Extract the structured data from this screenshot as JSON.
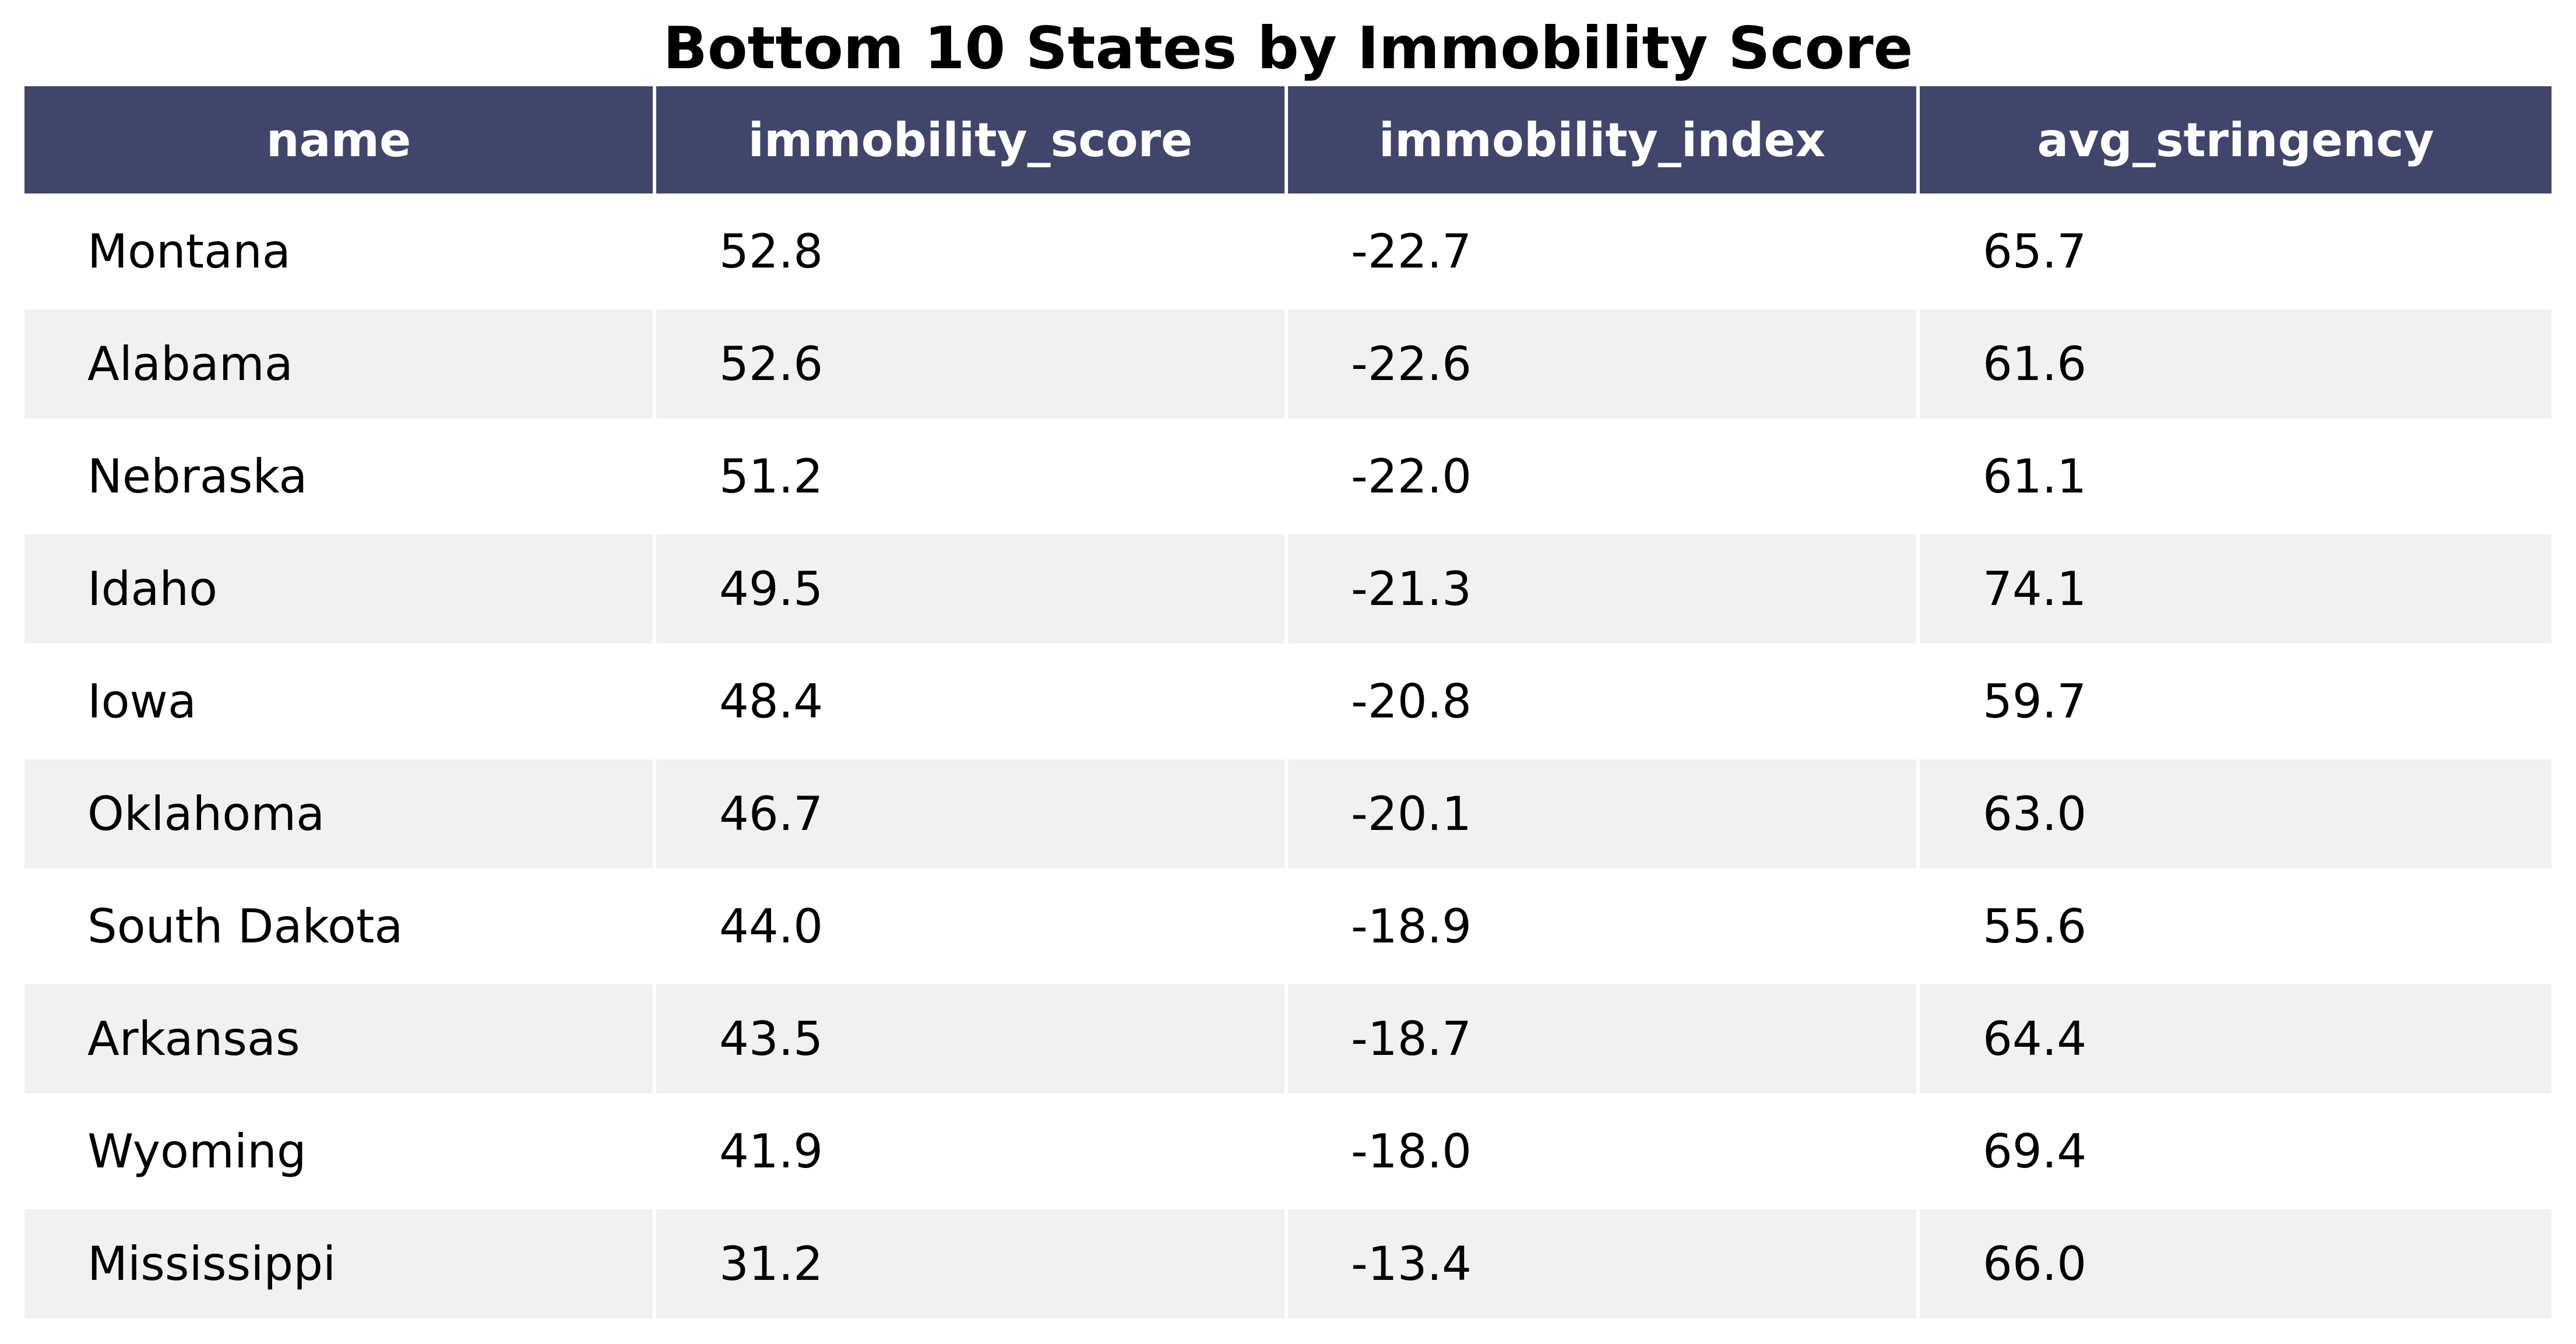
{
  "chart_data": {
    "type": "table",
    "title": "Bottom 10 States by Immobility Score",
    "columns": [
      "name",
      "immobility_score",
      "immobility_index",
      "avg_stringency"
    ],
    "rows": [
      [
        "Montana",
        "52.8",
        "-22.7",
        "65.7"
      ],
      [
        "Alabama",
        "52.6",
        "-22.6",
        "61.6"
      ],
      [
        "Nebraska",
        "51.2",
        "-22.0",
        "61.1"
      ],
      [
        "Idaho",
        "49.5",
        "-21.3",
        "74.1"
      ],
      [
        "Iowa",
        "48.4",
        "-20.8",
        "59.7"
      ],
      [
        "Oklahoma",
        "46.7",
        "-20.1",
        "63.0"
      ],
      [
        "South Dakota",
        "44.0",
        "-18.9",
        "55.6"
      ],
      [
        "Arkansas",
        "43.5",
        "-18.7",
        "64.4"
      ],
      [
        "Wyoming",
        "41.9",
        "-18.0",
        "69.4"
      ],
      [
        "Mississippi",
        "31.2",
        "-13.4",
        "66.0"
      ]
    ],
    "header_color": "#40466b",
    "header_text_color": "#ffffff",
    "row_colors": [
      "#ffffff",
      "#f1f1f1"
    ]
  }
}
